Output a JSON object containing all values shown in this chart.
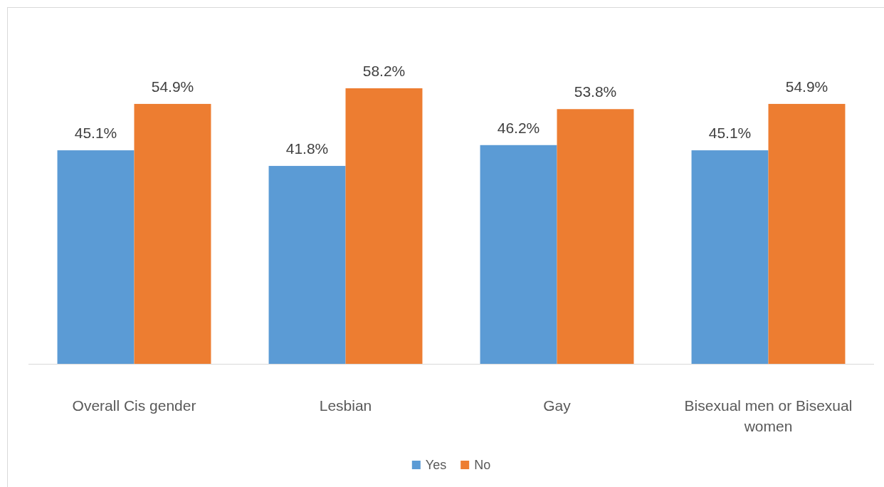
{
  "chart_data": {
    "type": "bar",
    "categories": [
      "Overall Cis gender",
      "Lesbian",
      "Gay",
      "Bisexual men or Bisexual women"
    ],
    "series": [
      {
        "name": "Yes",
        "color": "#5b9bd5",
        "values": [
          45.1,
          41.8,
          46.2,
          45.1
        ],
        "value_labels": [
          "45.1%",
          "41.8%",
          "46.2%",
          "45.1%"
        ]
      },
      {
        "name": "No",
        "color": "#ed7d31",
        "values": [
          54.9,
          58.2,
          53.8,
          54.9
        ],
        "value_labels": [
          "54.9%",
          "58.2%",
          "53.8%",
          "54.9%"
        ]
      }
    ],
    "legend": "bottom"
  }
}
